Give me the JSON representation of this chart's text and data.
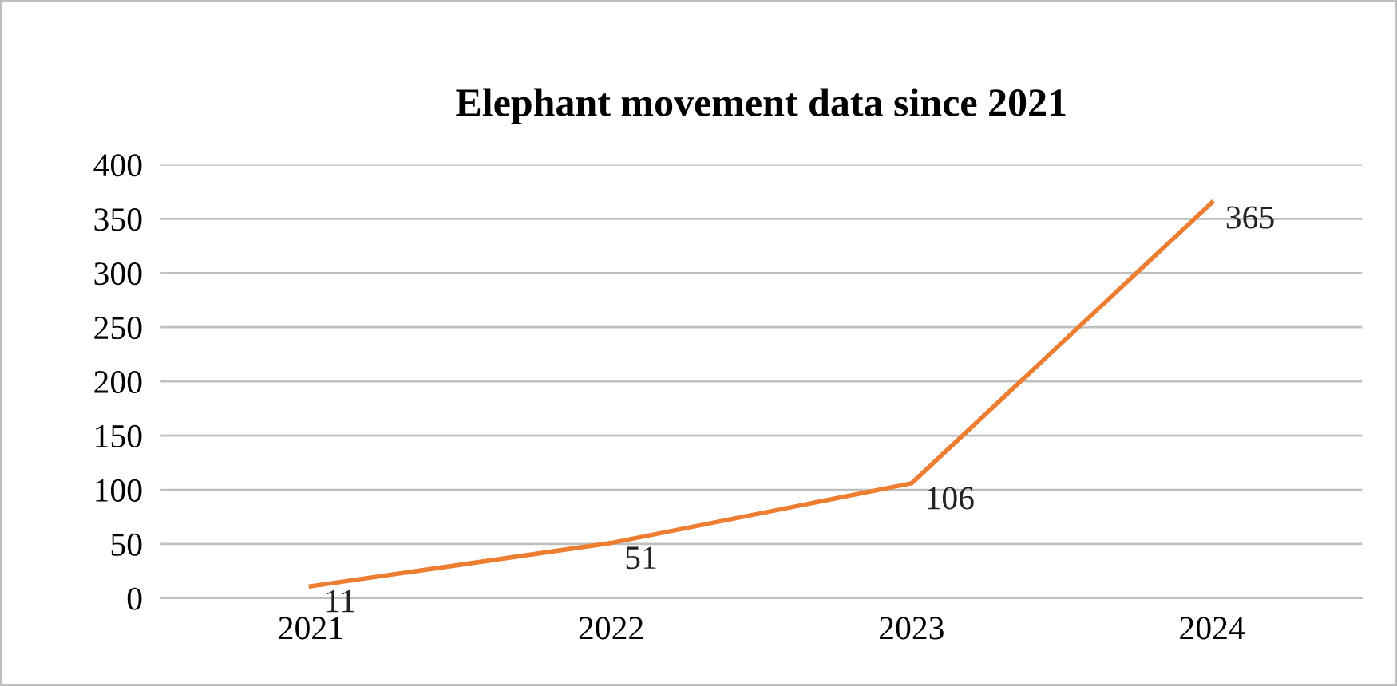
{
  "chart_data": {
    "type": "line",
    "title": "Elephant movement data since 2021",
    "categories": [
      "2021",
      "2022",
      "2023",
      "2024"
    ],
    "series": [
      {
        "color": "#ed7d31",
        "values": [
          11,
          51,
          106,
          365
        ]
      }
    ],
    "ylim": [
      0,
      400
    ],
    "yticks": [
      0,
      50,
      100,
      150,
      200,
      250,
      300,
      350,
      400
    ],
    "grid": "y",
    "data_labels": true,
    "marker": "none",
    "line_style": "solid"
  }
}
